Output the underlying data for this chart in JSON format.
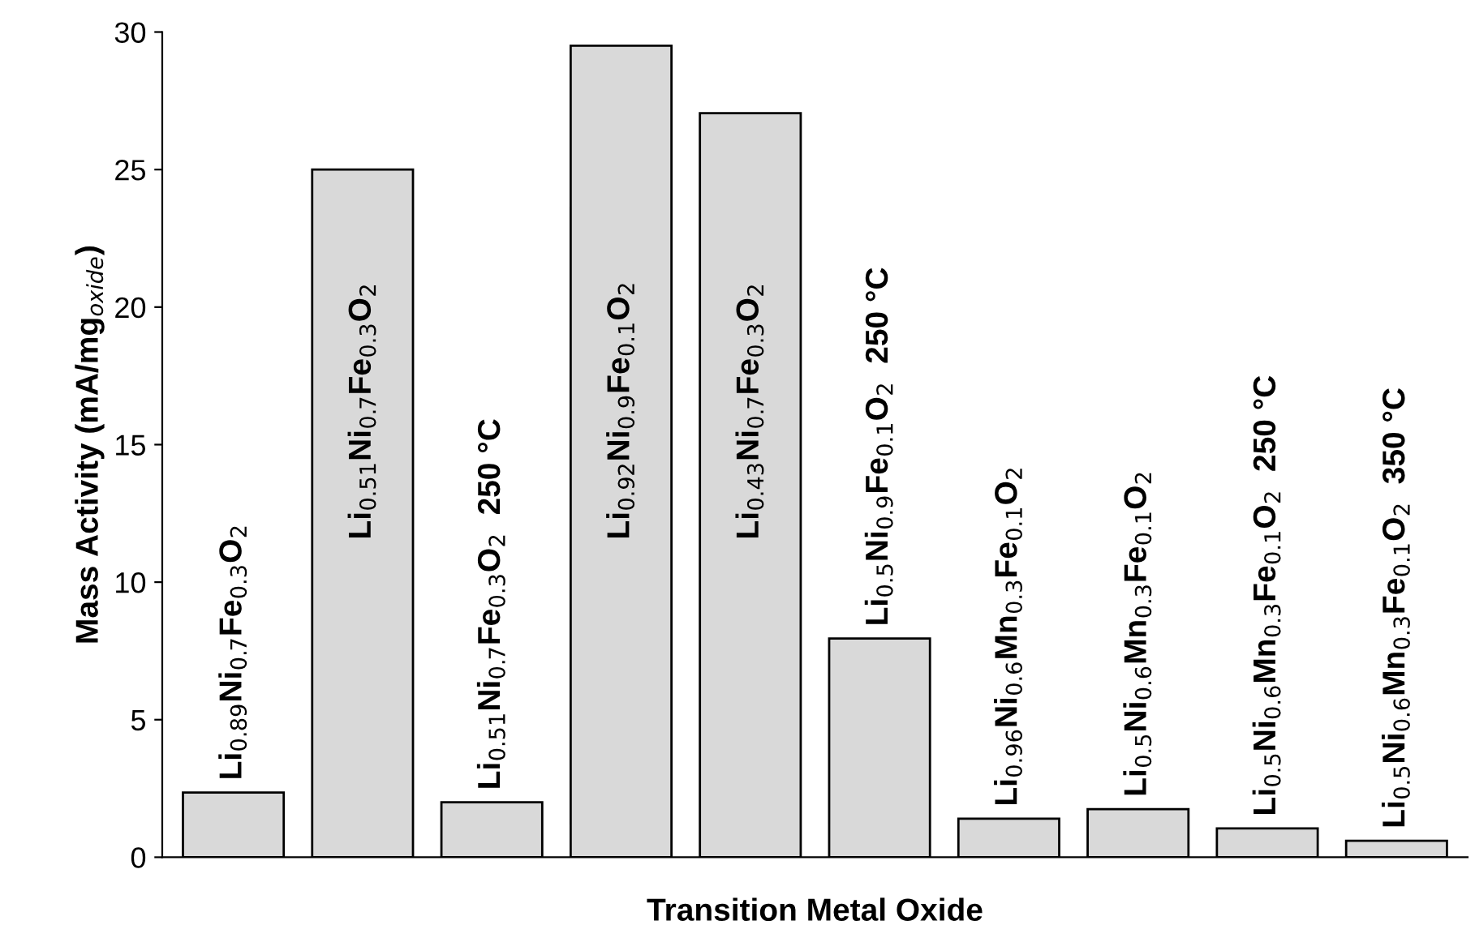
{
  "chart_data": {
    "type": "bar",
    "xlabel": "Transition Metal Oxide",
    "ylabel": "Mass Activity (mA/mg$_{oxide}$)",
    "categories": [
      "Li$_{0.89}$Ni$_{0.7}$Fe$_{0.3}$O$_{2}$",
      "Li$_{0.51}$Ni$_{0.7}$Fe$_{0.3}$O$_{2}$",
      "Li$_{0.51}$Ni$_{0.7}$Fe$_{0.3}$O$_{2}$  250 °C",
      "Li$_{0.92}$Ni$_{0.9}$Fe$_{0.1}$O$_{2}$",
      "Li$_{0.43}$Ni$_{0.7}$Fe$_{0.3}$O$_{2}$",
      "Li$_{0.5}$Ni$_{0.9}$Fe$_{0.1}$O$_{2}$  250 °C",
      "Li$_{0.96}$Ni$_{0.6}$Mn$_{0.3}$Fe$_{0.1}$O$_{2}$",
      "Li$_{0.5}$Ni$_{0.6}$Mn$_{0.3}$Fe$_{0.1}$O$_{2}$",
      "Li$_{0.5}$Ni$_{0.6}$Mn$_{0.3}$Fe$_{0.1}$O$_{2}$  250 °C",
      "Li$_{0.5}$Ni$_{0.6}$Mn$_{0.3}$Fe$_{0.1}$O$_{2}$  350 °C"
    ],
    "values": [
      2.35,
      25.0,
      2.0,
      29.5,
      27.05,
      7.95,
      1.4,
      1.75,
      1.05,
      0.6
    ],
    "color": "#d9d9d9",
    "ylim": [
      0,
      30
    ],
    "yticks": [
      0,
      5,
      10,
      15,
      20,
      25,
      30
    ],
    "tick_labels": "y",
    "grid": false
  }
}
